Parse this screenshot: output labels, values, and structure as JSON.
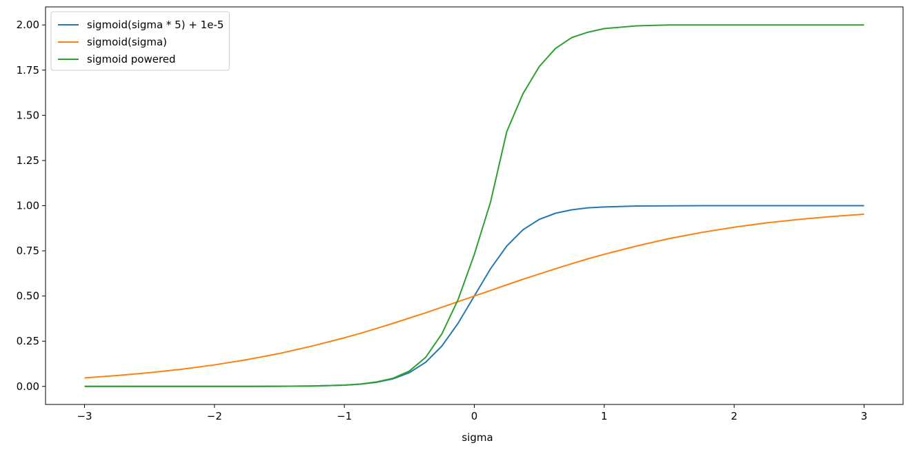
{
  "chart_data": {
    "type": "line",
    "x_label": "sigma",
    "x": [
      -3,
      -2.75,
      -2.5,
      -2.25,
      -2,
      -1.75,
      -1.5,
      -1.25,
      -1,
      -0.875,
      -0.75,
      -0.625,
      -0.5,
      -0.375,
      -0.25,
      -0.125,
      0,
      0.125,
      0.25,
      0.375,
      0.5,
      0.625,
      0.75,
      0.875,
      1,
      1.25,
      1.5,
      1.75,
      2,
      2.25,
      2.5,
      2.75,
      3
    ],
    "series": [
      {
        "name": "sigmoid(sigma * 5) + 1e-5",
        "color": "#1f77b4",
        "values": [
          0,
          0,
          0,
          0,
          0,
          0.0002,
          0.0006,
          0.0019,
          0.0067,
          0.0124,
          0.023,
          0.042,
          0.076,
          0.133,
          0.223,
          0.349,
          0.5,
          0.651,
          0.777,
          0.867,
          0.924,
          0.958,
          0.977,
          0.988,
          0.993,
          0.998,
          0.999,
          1,
          1,
          1,
          1,
          1,
          1
        ]
      },
      {
        "name": "sigmoid(sigma)",
        "color": "#ff7f0e",
        "values": [
          0.047,
          0.06,
          0.076,
          0.095,
          0.119,
          0.148,
          0.182,
          0.223,
          0.269,
          0.294,
          0.321,
          0.349,
          0.378,
          0.407,
          0.438,
          0.469,
          0.5,
          0.531,
          0.562,
          0.593,
          0.622,
          0.651,
          0.679,
          0.706,
          0.731,
          0.777,
          0.818,
          0.852,
          0.881,
          0.905,
          0.924,
          0.94,
          0.953
        ]
      },
      {
        "name": "sigmoid powered",
        "color": "#2ca02c",
        "values": [
          0,
          0,
          0,
          0,
          0,
          0,
          0.0005,
          0.002,
          0.007,
          0.013,
          0.025,
          0.045,
          0.085,
          0.16,
          0.29,
          0.48,
          0.73,
          1.02,
          1.41,
          1.62,
          1.77,
          1.87,
          1.93,
          1.96,
          1.98,
          1.995,
          2,
          2,
          2,
          2,
          2,
          2,
          2
        ]
      }
    ],
    "xlim": [
      -3.3,
      3.3
    ],
    "ylim": [
      -0.1,
      2.1
    ],
    "xticks": [
      {
        "value": -3,
        "label": "−3"
      },
      {
        "value": -2,
        "label": "−2"
      },
      {
        "value": -1,
        "label": "−1"
      },
      0,
      1,
      2,
      3
    ],
    "yticks": [
      {
        "value": 0,
        "label": "0.00"
      },
      {
        "value": 0.25,
        "label": "0.25"
      },
      {
        "value": 0.5,
        "label": "0.50"
      },
      {
        "value": 0.75,
        "label": "0.75"
      },
      {
        "value": 1,
        "label": "1.00"
      },
      {
        "value": 1.25,
        "label": "1.25"
      },
      {
        "value": 1.5,
        "label": "1.50"
      },
      {
        "value": 1.75,
        "label": "1.75"
      },
      {
        "value": 2,
        "label": "2.00"
      }
    ],
    "legend": "upper-left",
    "grid": false
  }
}
